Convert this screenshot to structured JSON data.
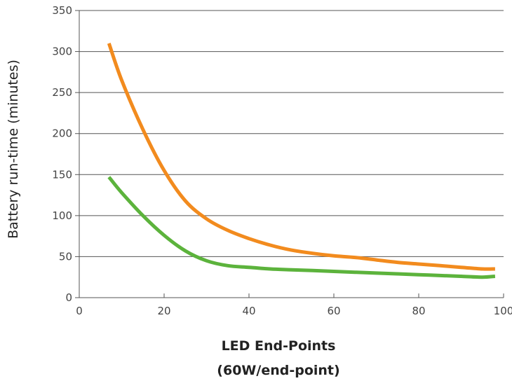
{
  "chart_data": {
    "type": "line",
    "title": "",
    "xlabel": "LED End-Points",
    "xlabel_sub": "(60W/end-point)",
    "ylabel": "Battery run-time (minutes)",
    "xlim": [
      0,
      100
    ],
    "ylim": [
      0,
      350
    ],
    "x_ticks": [
      0,
      20,
      40,
      60,
      80,
      100
    ],
    "y_ticks": [
      0,
      50,
      100,
      150,
      200,
      250,
      300,
      350
    ],
    "grid": "horizontal",
    "series": [
      {
        "color": "#f28b1e",
        "x": [
          7,
          10,
          15,
          20,
          25,
          30,
          35,
          40,
          45,
          50,
          55,
          60,
          65,
          70,
          75,
          80,
          85,
          90,
          95,
          98
        ],
        "y": [
          310,
          265,
          205,
          155,
          118,
          96,
          82,
          72,
          64,
          58,
          54,
          51,
          49,
          46,
          43,
          41,
          39,
          37,
          35,
          35
        ]
      },
      {
        "color": "#5cb33c",
        "x": [
          7,
          10,
          15,
          20,
          25,
          30,
          35,
          40,
          45,
          50,
          55,
          60,
          65,
          70,
          75,
          80,
          85,
          90,
          95,
          98
        ],
        "y": [
          147,
          128,
          100,
          76,
          57,
          45,
          39,
          37,
          35,
          34,
          33,
          32,
          31,
          30,
          29,
          28,
          27,
          26,
          25,
          26
        ]
      }
    ]
  }
}
